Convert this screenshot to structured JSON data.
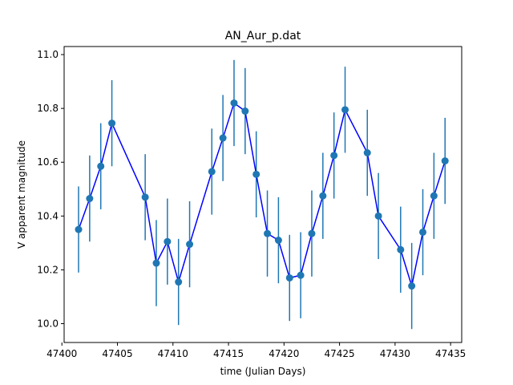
{
  "chart_data": {
    "type": "scatter",
    "title": "AN_Aur_p.dat",
    "xlabel": "time (Julian Days)",
    "ylabel": "V apparent magnitude",
    "xlim": [
      47400.2,
      47436.0
    ],
    "ylim": [
      9.93,
      11.03
    ],
    "xticks": [
      {
        "value": 47400,
        "label": "47400"
      },
      {
        "value": 47405,
        "label": "47405"
      },
      {
        "value": 47410,
        "label": "47410"
      },
      {
        "value": 47415,
        "label": "47415"
      },
      {
        "value": 47420,
        "label": "47420"
      },
      {
        "value": 47425,
        "label": "47425"
      },
      {
        "value": 47430,
        "label": "47430"
      },
      {
        "value": 47435,
        "label": "47435"
      }
    ],
    "yticks": [
      {
        "value": 10.0,
        "label": "10.0"
      },
      {
        "value": 10.2,
        "label": "10.2"
      },
      {
        "value": 10.4,
        "label": "10.4"
      },
      {
        "value": 10.6,
        "label": "10.6"
      },
      {
        "value": 10.8,
        "label": "10.8"
      },
      {
        "value": 11.0,
        "label": "11.0"
      }
    ],
    "grid": false,
    "series": [
      {
        "line_color": "#0000ff",
        "marker_color": "#1f77b4",
        "errorbar_color": "#1f77b4",
        "x": [
          47401.5,
          47402.5,
          47403.5,
          47404.5,
          47407.5,
          47408.5,
          47409.5,
          47410.5,
          47411.5,
          47413.5,
          47414.5,
          47415.5,
          47416.5,
          47417.5,
          47418.5,
          47419.5,
          47420.5,
          47421.5,
          47422.5,
          47423.5,
          47424.5,
          47425.5,
          47427.5,
          47428.5,
          47430.5,
          47431.5,
          47432.5,
          47433.5,
          47434.5
        ],
        "y": [
          10.35,
          10.465,
          10.585,
          10.745,
          10.47,
          10.225,
          10.305,
          10.155,
          10.295,
          10.565,
          10.69,
          10.82,
          10.79,
          10.555,
          10.335,
          10.31,
          10.17,
          10.18,
          10.335,
          10.475,
          10.625,
          10.795,
          10.635,
          10.4,
          10.275,
          10.14,
          10.34,
          10.475,
          10.605
        ],
        "yerr": [
          0.16,
          0.16,
          0.16,
          0.16,
          0.16,
          0.16,
          0.16,
          0.16,
          0.16,
          0.16,
          0.16,
          0.16,
          0.16,
          0.16,
          0.16,
          0.16,
          0.16,
          0.16,
          0.16,
          0.16,
          0.16,
          0.16,
          0.16,
          0.16,
          0.16,
          0.16,
          0.16,
          0.16,
          0.16
        ]
      }
    ]
  }
}
